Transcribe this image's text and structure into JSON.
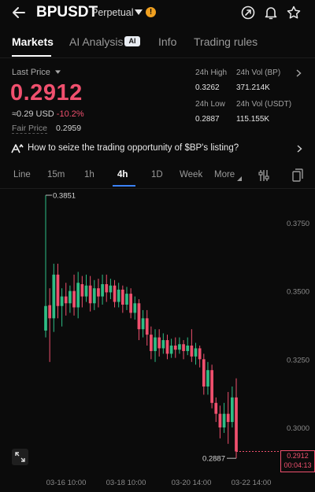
{
  "header": {
    "title": "BPUSDT",
    "subtitle": "Perpetual",
    "warning_mark": "!"
  },
  "tabs": [
    {
      "label": "Markets",
      "active": true
    },
    {
      "label": "AI Analysis",
      "badge": "AI",
      "active": false
    },
    {
      "label": "Info",
      "active": false
    },
    {
      "label": "Trading rules",
      "active": false
    }
  ],
  "ticker": {
    "last_price_label": "Last Price",
    "price": "0.2912",
    "usd_value": "≈0.29 USD",
    "change_pct": "-10.2%",
    "fair_price_label": "Fair Price",
    "fair_price": "0.2959",
    "stats": {
      "high_label": "24h High",
      "high": "0.3262",
      "vol_bp_label": "24h Vol (BP)",
      "vol_bp": "371.214K",
      "low_label": "24h Low",
      "low": "0.2887",
      "vol_usdt_label": "24h Vol  (USDT)",
      "vol_usdt": "115.155K"
    }
  },
  "promo": {
    "text": "How to seize the trading opportunity of $BP's listing?"
  },
  "intervals": [
    {
      "label": "Line",
      "active": false
    },
    {
      "label": "15m",
      "active": false
    },
    {
      "label": "1h",
      "active": false
    },
    {
      "label": "4h",
      "active": true
    },
    {
      "label": "1D",
      "active": false
    },
    {
      "label": "Week",
      "active": false
    },
    {
      "label": "More",
      "active": false
    }
  ],
  "colors": {
    "up": "#2ebd85",
    "down": "#f0506e",
    "accent": "#3b82f6"
  },
  "chart_data": {
    "type": "candlestick",
    "y_ticks": [
      "0.3750",
      "0.3500",
      "0.3250",
      "0.3000"
    ],
    "ylim": [
      0.2855,
      0.3905
    ],
    "x_ticks": [
      "03-16 10:00",
      "03-18 10:00",
      "03-20 14:00",
      "03-22 14:00"
    ],
    "max_label": "0.3851",
    "min_label": "0.2887",
    "current_price": "0.2912",
    "countdown": "00:04:13",
    "candles": [
      {
        "o": 0.3355,
        "c": 0.3445,
        "h": 0.3851,
        "l": 0.333
      },
      {
        "o": 0.3448,
        "c": 0.34,
        "h": 0.351,
        "l": 0.324
      },
      {
        "o": 0.34,
        "c": 0.356,
        "h": 0.36,
        "l": 0.335
      },
      {
        "o": 0.356,
        "c": 0.3445,
        "h": 0.36,
        "l": 0.34
      },
      {
        "o": 0.3445,
        "c": 0.348,
        "h": 0.351,
        "l": 0.337
      },
      {
        "o": 0.348,
        "c": 0.3455,
        "h": 0.353,
        "l": 0.341
      },
      {
        "o": 0.3455,
        "c": 0.35,
        "h": 0.352,
        "l": 0.342
      },
      {
        "o": 0.35,
        "c": 0.344,
        "h": 0.356,
        "l": 0.341
      },
      {
        "o": 0.344,
        "c": 0.353,
        "h": 0.357,
        "l": 0.34
      },
      {
        "o": 0.3525,
        "c": 0.348,
        "h": 0.3555,
        "l": 0.344
      },
      {
        "o": 0.348,
        "c": 0.352,
        "h": 0.356,
        "l": 0.346
      },
      {
        "o": 0.352,
        "c": 0.3455,
        "h": 0.3555,
        "l": 0.3425
      },
      {
        "o": 0.3455,
        "c": 0.351,
        "h": 0.354,
        "l": 0.343
      },
      {
        "o": 0.351,
        "c": 0.348,
        "h": 0.3545,
        "l": 0.344
      },
      {
        "o": 0.348,
        "c": 0.3525,
        "h": 0.356,
        "l": 0.345
      },
      {
        "o": 0.3525,
        "c": 0.3495,
        "h": 0.356,
        "l": 0.346
      },
      {
        "o": 0.3495,
        "c": 0.352,
        "h": 0.3545,
        "l": 0.347
      },
      {
        "o": 0.352,
        "c": 0.346,
        "h": 0.354,
        "l": 0.344
      },
      {
        "o": 0.346,
        "c": 0.3505,
        "h": 0.353,
        "l": 0.344
      },
      {
        "o": 0.3505,
        "c": 0.345,
        "h": 0.352,
        "l": 0.342
      },
      {
        "o": 0.345,
        "c": 0.349,
        "h": 0.3515,
        "l": 0.343
      },
      {
        "o": 0.349,
        "c": 0.342,
        "h": 0.351,
        "l": 0.34
      },
      {
        "o": 0.342,
        "c": 0.3455,
        "h": 0.348,
        "l": 0.3395
      },
      {
        "o": 0.3455,
        "c": 0.336,
        "h": 0.347,
        "l": 0.332
      },
      {
        "o": 0.336,
        "c": 0.34,
        "h": 0.343,
        "l": 0.333
      },
      {
        "o": 0.34,
        "c": 0.334,
        "h": 0.343,
        "l": 0.33
      },
      {
        "o": 0.334,
        "c": 0.328,
        "h": 0.337,
        "l": 0.325
      },
      {
        "o": 0.328,
        "c": 0.333,
        "h": 0.336,
        "l": 0.324
      },
      {
        "o": 0.333,
        "c": 0.329,
        "h": 0.336,
        "l": 0.326
      },
      {
        "o": 0.329,
        "c": 0.332,
        "h": 0.3345,
        "l": 0.327
      },
      {
        "o": 0.332,
        "c": 0.327,
        "h": 0.334,
        "l": 0.325
      },
      {
        "o": 0.327,
        "c": 0.33,
        "h": 0.3325,
        "l": 0.3255
      },
      {
        "o": 0.33,
        "c": 0.3285,
        "h": 0.333,
        "l": 0.3255
      },
      {
        "o": 0.3285,
        "c": 0.3305,
        "h": 0.333,
        "l": 0.327
      },
      {
        "o": 0.3305,
        "c": 0.328,
        "h": 0.332,
        "l": 0.325
      },
      {
        "o": 0.328,
        "c": 0.33,
        "h": 0.333,
        "l": 0.3265
      },
      {
        "o": 0.33,
        "c": 0.326,
        "h": 0.336,
        "l": 0.324
      },
      {
        "o": 0.326,
        "c": 0.329,
        "h": 0.331,
        "l": 0.323
      },
      {
        "o": 0.329,
        "c": 0.325,
        "h": 0.33,
        "l": 0.322
      },
      {
        "o": 0.325,
        "c": 0.315,
        "h": 0.327,
        "l": 0.312
      },
      {
        "o": 0.315,
        "c": 0.321,
        "h": 0.324,
        "l": 0.312
      },
      {
        "o": 0.321,
        "c": 0.309,
        "h": 0.323,
        "l": 0.307
      },
      {
        "o": 0.309,
        "c": 0.305,
        "h": 0.311,
        "l": 0.302
      },
      {
        "o": 0.305,
        "c": 0.3,
        "h": 0.308,
        "l": 0.296
      },
      {
        "o": 0.3,
        "c": 0.305,
        "h": 0.309,
        "l": 0.298
      },
      {
        "o": 0.305,
        "c": 0.302,
        "h": 0.313,
        "l": 0.294
      },
      {
        "o": 0.302,
        "c": 0.311,
        "h": 0.315,
        "l": 0.3
      },
      {
        "o": 0.311,
        "c": 0.2912,
        "h": 0.318,
        "l": 0.2887
      }
    ]
  }
}
